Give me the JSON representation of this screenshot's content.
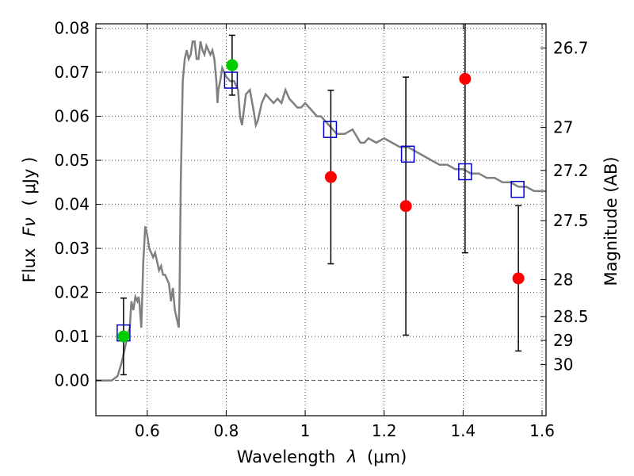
{
  "chart_data": {
    "type": "scatter",
    "xlabel_text": "Wavelength",
    "xlabel_symbol": "λ",
    "xlabel_unit": "(μm)",
    "ylabel_text": "Flux",
    "ylabel_symbol": "Fν",
    "ylabel_unit": "( μJy )",
    "ylabel_right": "Magnitude (AB)",
    "xlim": [
      0.47,
      1.61
    ],
    "ylim": [
      -0.008,
      0.081
    ],
    "x_ticks": [
      {
        "value": 0.6,
        "label": "0.6"
      },
      {
        "value": 0.8,
        "label": "0.8"
      },
      {
        "value": 1.0,
        "label": "1"
      },
      {
        "value": 1.2,
        "label": "1.2"
      },
      {
        "value": 1.4,
        "label": "1.4"
      },
      {
        "value": 1.6,
        "label": "1.6"
      }
    ],
    "y_ticks": [
      {
        "value": 0.0,
        "label": "0.00"
      },
      {
        "value": 0.01,
        "label": "0.01"
      },
      {
        "value": 0.02,
        "label": "0.02"
      },
      {
        "value": 0.03,
        "label": "0.03"
      },
      {
        "value": 0.04,
        "label": "0.04"
      },
      {
        "value": 0.05,
        "label": "0.05"
      },
      {
        "value": 0.06,
        "label": "0.06"
      },
      {
        "value": 0.07,
        "label": "0.07"
      },
      {
        "value": 0.08,
        "label": "0.08"
      }
    ],
    "mag_ticks": [
      {
        "label": "26.7",
        "flux": 0.0755
      },
      {
        "label": "27",
        "flux": 0.0575
      },
      {
        "label": "27.2",
        "flux": 0.0477
      },
      {
        "label": "27.5",
        "flux": 0.0363
      },
      {
        "label": "28",
        "flux": 0.0229
      },
      {
        "label": "28.5",
        "flux": 0.0145
      },
      {
        "label": "29",
        "flux": 0.0091
      },
      {
        "label": "30",
        "flux": 0.0036
      }
    ],
    "grid": true,
    "sed_model": {
      "color": "#808080",
      "x": [
        0.47,
        0.51,
        0.525,
        0.535,
        0.545,
        0.552,
        0.556,
        0.56,
        0.565,
        0.57,
        0.575,
        0.578,
        0.58,
        0.585,
        0.59,
        0.595,
        0.6,
        0.605,
        0.61,
        0.615,
        0.62,
        0.625,
        0.63,
        0.635,
        0.64,
        0.645,
        0.65,
        0.655,
        0.66,
        0.665,
        0.67,
        0.675,
        0.68,
        0.682,
        0.685,
        0.69,
        0.695,
        0.7,
        0.705,
        0.71,
        0.715,
        0.72,
        0.725,
        0.73,
        0.735,
        0.74,
        0.745,
        0.75,
        0.755,
        0.76,
        0.765,
        0.77,
        0.775,
        0.778,
        0.78,
        0.785,
        0.79,
        0.8,
        0.81,
        0.82,
        0.83,
        0.835,
        0.84,
        0.85,
        0.86,
        0.87,
        0.875,
        0.88,
        0.89,
        0.9,
        0.91,
        0.92,
        0.93,
        0.94,
        0.95,
        0.96,
        0.97,
        0.98,
        0.99,
        1.0,
        1.01,
        1.02,
        1.03,
        1.04,
        1.05,
        1.06,
        1.07,
        1.08,
        1.1,
        1.12,
        1.14,
        1.15,
        1.16,
        1.18,
        1.2,
        1.22,
        1.24,
        1.26,
        1.28,
        1.3,
        1.32,
        1.34,
        1.36,
        1.38,
        1.4,
        1.42,
        1.44,
        1.46,
        1.48,
        1.5,
        1.52,
        1.54,
        1.56,
        1.58,
        1.6,
        1.61
      ],
      "y": [
        0.0,
        0.0,
        0.001,
        0.004,
        0.008,
        0.011,
        0.012,
        0.018,
        0.016,
        0.019,
        0.018,
        0.019,
        0.018,
        0.012,
        0.027,
        0.035,
        0.033,
        0.03,
        0.029,
        0.028,
        0.029,
        0.027,
        0.025,
        0.026,
        0.024,
        0.024,
        0.023,
        0.022,
        0.018,
        0.021,
        0.016,
        0.014,
        0.012,
        0.02,
        0.045,
        0.068,
        0.073,
        0.075,
        0.073,
        0.074,
        0.077,
        0.077,
        0.073,
        0.073,
        0.077,
        0.075,
        0.074,
        0.076,
        0.075,
        0.074,
        0.075,
        0.073,
        0.068,
        0.063,
        0.066,
        0.068,
        0.071,
        0.069,
        0.068,
        0.068,
        0.066,
        0.06,
        0.058,
        0.065,
        0.066,
        0.061,
        0.058,
        0.059,
        0.063,
        0.065,
        0.064,
        0.063,
        0.064,
        0.063,
        0.066,
        0.064,
        0.063,
        0.062,
        0.062,
        0.063,
        0.062,
        0.061,
        0.06,
        0.06,
        0.059,
        0.058,
        0.057,
        0.056,
        0.056,
        0.057,
        0.054,
        0.054,
        0.055,
        0.054,
        0.055,
        0.054,
        0.053,
        0.053,
        0.052,
        0.051,
        0.05,
        0.049,
        0.049,
        0.048,
        0.048,
        0.047,
        0.047,
        0.046,
        0.046,
        0.045,
        0.045,
        0.044,
        0.044,
        0.043,
        0.043,
        0.043
      ]
    },
    "photometry_red": {
      "color": "#ff0000",
      "points": [
        {
          "x": 1.065,
          "y": 0.0462,
          "err": 0.0197
        },
        {
          "x": 1.255,
          "y": 0.0396,
          "err": 0.0293
        },
        {
          "x": 1.405,
          "y": 0.0685,
          "err": 0.0395
        },
        {
          "x": 1.54,
          "y": 0.0232,
          "err": 0.0165
        }
      ]
    },
    "photometry_green": {
      "color": "#00cc00",
      "points": [
        {
          "x": 0.54,
          "y": 0.01,
          "err": 0.0087
        },
        {
          "x": 0.815,
          "y": 0.0716,
          "err": 0.0068
        }
      ]
    },
    "model_squares": {
      "color": "#0000cc",
      "points": [
        {
          "x": 0.54,
          "y": 0.0108
        },
        {
          "x": 0.812,
          "y": 0.0682
        },
        {
          "x": 1.063,
          "y": 0.057
        },
        {
          "x": 1.26,
          "y": 0.0514
        },
        {
          "x": 1.405,
          "y": 0.0474
        },
        {
          "x": 1.538,
          "y": 0.0434
        }
      ]
    }
  }
}
